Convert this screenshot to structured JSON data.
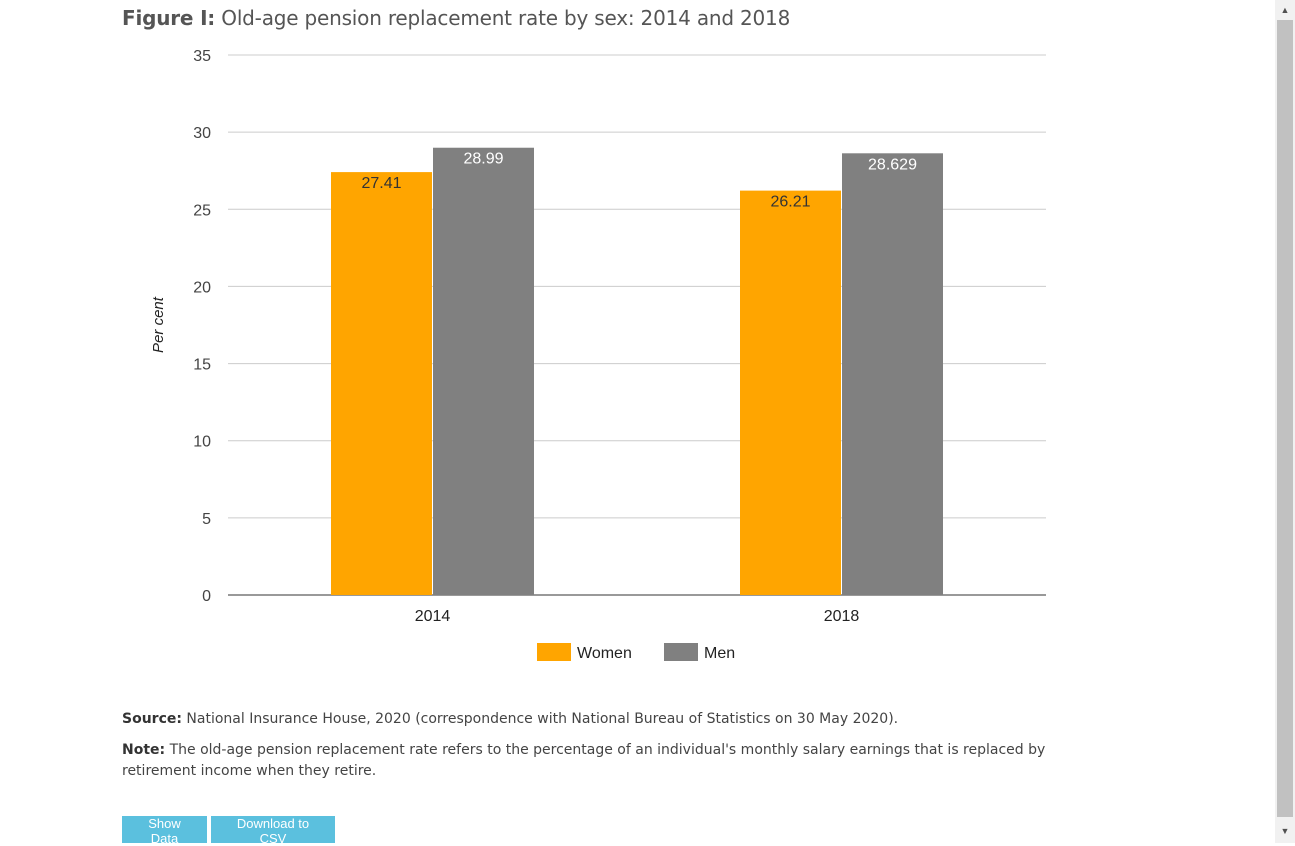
{
  "figure": {
    "label": "Figure I:",
    "title": "Old-age pension replacement rate by sex: 2014 and 2018"
  },
  "chart_data": {
    "type": "bar",
    "categories": [
      "2014",
      "2018"
    ],
    "series": [
      {
        "name": "Women",
        "color": "#ffa500",
        "values": [
          27.41,
          26.21
        ],
        "labels": [
          "27.41",
          "26.21"
        ],
        "label_color": "#333333"
      },
      {
        "name": "Men",
        "color": "#808080",
        "values": [
          28.99,
          28.629
        ],
        "labels": [
          "28.99",
          "28.629"
        ],
        "label_color": "#ffffff"
      }
    ],
    "ylabel": "Per cent",
    "ylim": [
      0,
      35
    ],
    "yticks": [
      0,
      5,
      10,
      15,
      20,
      25,
      30,
      35
    ],
    "grid": true,
    "legend": "bottom-center"
  },
  "source": {
    "label": "Source:",
    "text": "National Insurance House, 2020 (correspondence with National Bureau of Statistics on 30 May 2020)."
  },
  "note": {
    "label": "Note:",
    "text": "The old-age pension replacement rate refers to the percentage of an individual's monthly salary earnings that is replaced by retirement income when they retire."
  },
  "buttons": {
    "show_data": "Show Data",
    "download_csv": "Download to CSV"
  },
  "icons": {
    "scroll_up": "scroll-up-icon",
    "scroll_down": "scroll-down-icon"
  }
}
